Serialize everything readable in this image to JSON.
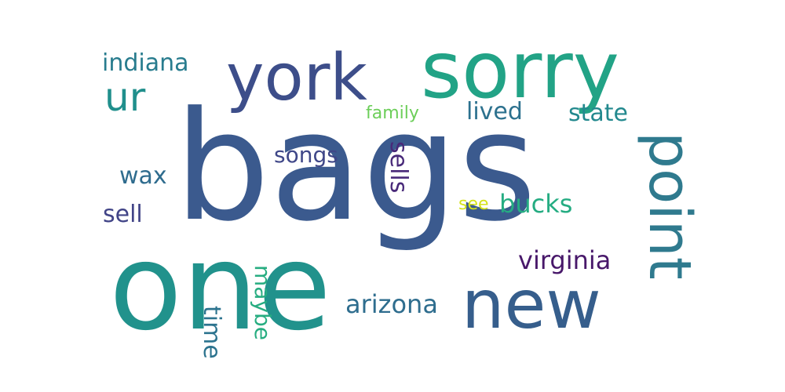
{
  "wordcloud": {
    "background": "#ffffff",
    "words": {
      "bags": {
        "text": "bags",
        "color": "#3b5a8e"
      },
      "one": {
        "text": "one",
        "color": "#21928c"
      },
      "sorry": {
        "text": "sorry",
        "color": "#22a386"
      },
      "york": {
        "text": "york",
        "color": "#3d4e8a"
      },
      "new": {
        "text": "new",
        "color": "#365e8c"
      },
      "point": {
        "text": "point",
        "color": "#2f7a8e"
      },
      "ur": {
        "text": "ur",
        "color": "#208f8c"
      },
      "indiana": {
        "text": "indiana",
        "color": "#287c8e"
      },
      "lived": {
        "text": "lived",
        "color": "#2c718e"
      },
      "state": {
        "text": "state",
        "color": "#23898e"
      },
      "family": {
        "text": "family",
        "color": "#6cce59"
      },
      "songs": {
        "text": "songs",
        "color": "#3f4788"
      },
      "sells": {
        "text": "sells",
        "color": "#482979"
      },
      "wax": {
        "text": "wax",
        "color": "#2f6c8e"
      },
      "sell": {
        "text": "sell",
        "color": "#414487"
      },
      "see": {
        "text": "see",
        "color": "#d4e21a"
      },
      "bucks": {
        "text": "bucks",
        "color": "#25ac82"
      },
      "virginia": {
        "text": "virginia",
        "color": "#48186a"
      },
      "arizona": {
        "text": "arizona",
        "color": "#2e6d8e"
      },
      "time": {
        "text": "time",
        "color": "#2c738e"
      },
      "maybe": {
        "text": "maybe",
        "color": "#27ad81"
      }
    }
  }
}
